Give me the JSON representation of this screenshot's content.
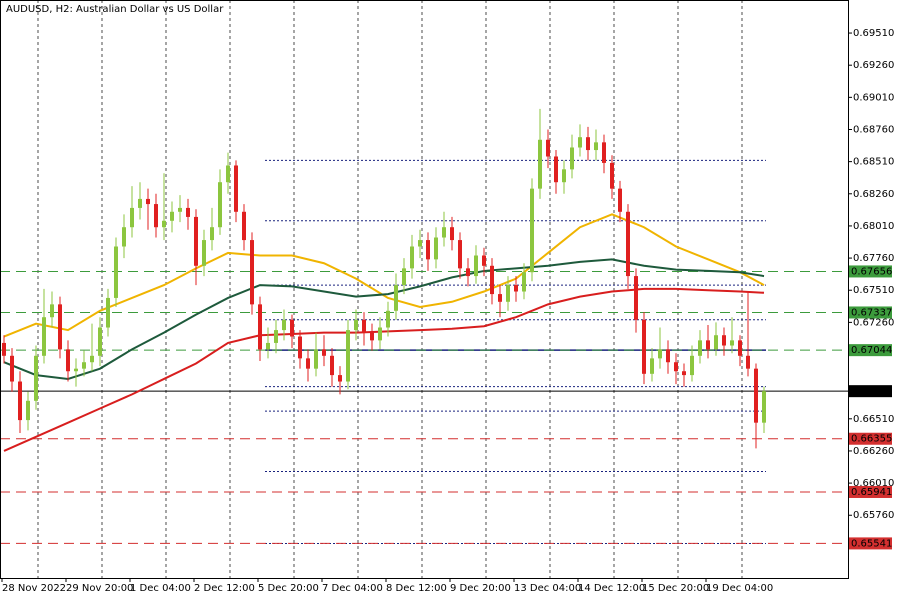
{
  "chart_data": {
    "type": "candlestick",
    "title": "AUDUSD, H2:  Australian Dollar vs US Dollar",
    "bull_color": "#8cc63f",
    "bear_color": "#e02020",
    "ylim": [
      0.65272,
      0.69767
    ],
    "yticks": [
      {
        "value": 0.6951,
        "label": "0.69510"
      },
      {
        "value": 0.6926,
        "label": "0.69260"
      },
      {
        "value": 0.6901,
        "label": "0.69010"
      },
      {
        "value": 0.6876,
        "label": "0.68760"
      },
      {
        "value": 0.6851,
        "label": "0.68510"
      },
      {
        "value": 0.6826,
        "label": "0.68260"
      },
      {
        "value": 0.6801,
        "label": "0.68010"
      },
      {
        "value": 0.6776,
        "label": "0.67760"
      },
      {
        "value": 0.6751,
        "label": "0.67510"
      },
      {
        "value": 0.6726,
        "label": "0.67260"
      },
      {
        "value": 0.6651,
        "label": "0.66510"
      },
      {
        "value": 0.6626,
        "label": "0.66260"
      },
      {
        "value": 0.6601,
        "label": "0.66010"
      },
      {
        "value": 0.6576,
        "label": "0.65760"
      }
    ],
    "xtick_labels": [
      "28 Nov 2022",
      "29 Nov 20:00",
      "1 Dec 04:00",
      "2 Dec 12:00",
      "5 Dec 20:00",
      "7 Dec 04:00",
      "8 Dec 12:00",
      "9 Dec 20:00",
      "13 Dec 04:00",
      "14 Dec 12:00",
      "15 Dec 20:00",
      "19 Dec 04:00"
    ],
    "grid": true,
    "candles": [
      [
        0.671,
        0.6716,
        0.6694,
        0.67
      ],
      [
        0.67,
        0.6706,
        0.6672,
        0.668
      ],
      [
        0.668,
        0.6688,
        0.664,
        0.665
      ],
      [
        0.665,
        0.6672,
        0.6642,
        0.6665
      ],
      [
        0.6665,
        0.6708,
        0.6658,
        0.67
      ],
      [
        0.67,
        0.6752,
        0.6694,
        0.673
      ],
      [
        0.673,
        0.675,
        0.6722,
        0.674
      ],
      [
        0.674,
        0.6746,
        0.6698,
        0.6705
      ],
      [
        0.6705,
        0.6712,
        0.668,
        0.6688
      ],
      [
        0.6688,
        0.6698,
        0.6676,
        0.669
      ],
      [
        0.669,
        0.6704,
        0.6684,
        0.6695
      ],
      [
        0.6695,
        0.6725,
        0.6688,
        0.67
      ],
      [
        0.67,
        0.673,
        0.6692,
        0.6722
      ],
      [
        0.6722,
        0.6752,
        0.6715,
        0.6745
      ],
      [
        0.6745,
        0.6792,
        0.6738,
        0.6785
      ],
      [
        0.6785,
        0.681,
        0.6776,
        0.68
      ],
      [
        0.68,
        0.6832,
        0.6792,
        0.6815
      ],
      [
        0.6815,
        0.6835,
        0.6806,
        0.6822
      ],
      [
        0.6822,
        0.683,
        0.6798,
        0.6818
      ],
      [
        0.6818,
        0.6826,
        0.6792,
        0.68
      ],
      [
        0.68,
        0.6842,
        0.679,
        0.6805
      ],
      [
        0.6805,
        0.682,
        0.6796,
        0.6812
      ],
      [
        0.6812,
        0.6825,
        0.6804,
        0.6815
      ],
      [
        0.6815,
        0.6822,
        0.6798,
        0.6808
      ],
      [
        0.6808,
        0.6814,
        0.6755,
        0.677
      ],
      [
        0.677,
        0.6798,
        0.6762,
        0.679
      ],
      [
        0.679,
        0.6815,
        0.6782,
        0.68
      ],
      [
        0.68,
        0.6845,
        0.6794,
        0.6835
      ],
      [
        0.6835,
        0.6858,
        0.6826,
        0.6848
      ],
      [
        0.6848,
        0.6852,
        0.6804,
        0.6812
      ],
      [
        0.6812,
        0.6818,
        0.6782,
        0.679
      ],
      [
        0.679,
        0.6796,
        0.6732,
        0.674
      ],
      [
        0.674,
        0.6746,
        0.6696,
        0.6705
      ],
      [
        0.6705,
        0.6722,
        0.6698,
        0.671
      ],
      [
        0.671,
        0.6728,
        0.6702,
        0.672
      ],
      [
        0.672,
        0.6736,
        0.6712,
        0.6728
      ],
      [
        0.6728,
        0.6732,
        0.6706,
        0.6715
      ],
      [
        0.6715,
        0.672,
        0.669,
        0.6698
      ],
      [
        0.6698,
        0.6705,
        0.668,
        0.669
      ],
      [
        0.669,
        0.6718,
        0.6684,
        0.6705
      ],
      [
        0.6705,
        0.6716,
        0.6692,
        0.67
      ],
      [
        0.67,
        0.6706,
        0.6676,
        0.6685
      ],
      [
        0.6685,
        0.6692,
        0.667,
        0.668
      ],
      [
        0.668,
        0.6728,
        0.6674,
        0.672
      ],
      [
        0.672,
        0.6736,
        0.6712,
        0.6728
      ],
      [
        0.6728,
        0.6734,
        0.6708,
        0.6718
      ],
      [
        0.6718,
        0.6725,
        0.6704,
        0.6712
      ],
      [
        0.6712,
        0.673,
        0.6705,
        0.6722
      ],
      [
        0.6722,
        0.6742,
        0.6715,
        0.6735
      ],
      [
        0.6735,
        0.6764,
        0.6728,
        0.6755
      ],
      [
        0.6755,
        0.6776,
        0.6748,
        0.6768
      ],
      [
        0.6768,
        0.6794,
        0.676,
        0.6785
      ],
      [
        0.6785,
        0.6798,
        0.6776,
        0.679
      ],
      [
        0.679,
        0.6796,
        0.6766,
        0.6775
      ],
      [
        0.6775,
        0.68,
        0.6768,
        0.6792
      ],
      [
        0.6792,
        0.6812,
        0.6785,
        0.68
      ],
      [
        0.68,
        0.6808,
        0.6782,
        0.679
      ],
      [
        0.679,
        0.6796,
        0.676,
        0.6768
      ],
      [
        0.6768,
        0.6776,
        0.6754,
        0.6762
      ],
      [
        0.6762,
        0.6786,
        0.6756,
        0.6778
      ],
      [
        0.6778,
        0.6784,
        0.6762,
        0.677
      ],
      [
        0.677,
        0.6776,
        0.674,
        0.6748
      ],
      [
        0.6748,
        0.6755,
        0.673,
        0.6742
      ],
      [
        0.6742,
        0.6762,
        0.6735,
        0.6755
      ],
      [
        0.6755,
        0.6762,
        0.6742,
        0.675
      ],
      [
        0.675,
        0.6772,
        0.6744,
        0.6765
      ],
      [
        0.6765,
        0.6838,
        0.6758,
        0.683
      ],
      [
        0.683,
        0.6892,
        0.6822,
        0.6868
      ],
      [
        0.6868,
        0.6876,
        0.6846,
        0.6855
      ],
      [
        0.6855,
        0.686,
        0.6826,
        0.6835
      ],
      [
        0.6835,
        0.6852,
        0.6826,
        0.6845
      ],
      [
        0.6845,
        0.6872,
        0.6838,
        0.6862
      ],
      [
        0.6862,
        0.688,
        0.6855,
        0.687
      ],
      [
        0.687,
        0.6878,
        0.6852,
        0.686
      ],
      [
        0.686,
        0.6876,
        0.6852,
        0.6866
      ],
      [
        0.6866,
        0.6872,
        0.6842,
        0.685
      ],
      [
        0.685,
        0.6856,
        0.6822,
        0.683
      ],
      [
        0.683,
        0.6836,
        0.6804,
        0.6812
      ],
      [
        0.6812,
        0.6818,
        0.6752,
        0.6762
      ],
      [
        0.6762,
        0.6768,
        0.6718,
        0.6728
      ],
      [
        0.6728,
        0.6734,
        0.6678,
        0.6686
      ],
      [
        0.6686,
        0.6706,
        0.668,
        0.6698
      ],
      [
        0.6698,
        0.6722,
        0.669,
        0.6705
      ],
      [
        0.6705,
        0.6712,
        0.6686,
        0.6695
      ],
      [
        0.6695,
        0.6702,
        0.6678,
        0.6688
      ],
      [
        0.6688,
        0.6694,
        0.6676,
        0.6685
      ],
      [
        0.6685,
        0.6708,
        0.668,
        0.67
      ],
      [
        0.67,
        0.672,
        0.6694,
        0.6712
      ],
      [
        0.6712,
        0.6724,
        0.6698,
        0.6705
      ],
      [
        0.6705,
        0.6726,
        0.67,
        0.6716
      ],
      [
        0.6716,
        0.6722,
        0.67,
        0.6708
      ],
      [
        0.6708,
        0.673,
        0.6702,
        0.6712
      ],
      [
        0.6712,
        0.6716,
        0.6692,
        0.67
      ],
      [
        0.67,
        0.675,
        0.6684,
        0.669
      ],
      [
        0.669,
        0.6694,
        0.6628,
        0.6648
      ],
      [
        0.6648,
        0.6676,
        0.664,
        0.66725
      ]
    ],
    "series": [
      {
        "color": "#f0b400",
        "x": [
          0,
          4,
          8,
          12,
          16,
          20,
          24,
          28,
          32,
          36,
          40,
          44,
          48,
          52,
          56,
          60,
          64,
          68,
          72,
          76,
          80,
          84,
          88,
          92,
          95
        ],
        "values": [
          0.6715,
          0.6725,
          0.672,
          0.6735,
          0.6745,
          0.6755,
          0.6768,
          0.678,
          0.6778,
          0.6778,
          0.6772,
          0.676,
          0.6745,
          0.6738,
          0.6742,
          0.675,
          0.676,
          0.678,
          0.68,
          0.681,
          0.68,
          0.6785,
          0.6775,
          0.6765,
          0.6755
        ]
      },
      {
        "color": "#1e5a3c",
        "x": [
          0,
          4,
          8,
          12,
          16,
          20,
          24,
          28,
          32,
          36,
          40,
          44,
          48,
          52,
          56,
          60,
          64,
          68,
          72,
          76,
          80,
          84,
          88,
          92,
          95
        ],
        "values": [
          0.6695,
          0.6685,
          0.6682,
          0.669,
          0.6705,
          0.6718,
          0.6732,
          0.6745,
          0.6755,
          0.6754,
          0.675,
          0.6746,
          0.6748,
          0.6754,
          0.6761,
          0.6766,
          0.6768,
          0.677,
          0.6773,
          0.6775,
          0.677,
          0.6767,
          0.6766,
          0.6765,
          0.6762
        ]
      },
      {
        "color": "#d81e1e",
        "x": [
          0,
          4,
          8,
          12,
          16,
          20,
          24,
          28,
          32,
          36,
          40,
          44,
          48,
          52,
          56,
          60,
          64,
          68,
          72,
          76,
          80,
          84,
          88,
          92,
          95
        ],
        "values": [
          0.6626,
          0.6637,
          0.6648,
          0.6659,
          0.667,
          0.6682,
          0.6694,
          0.671,
          0.6716,
          0.6717,
          0.6718,
          0.6718,
          0.6719,
          0.672,
          0.6721,
          0.6723,
          0.673,
          0.674,
          0.6746,
          0.675,
          0.6752,
          0.6752,
          0.6751,
          0.675,
          0.6749
        ]
      }
    ],
    "fib_levels": [
      0.6852,
      0.6805,
      0.6755,
      0.6728,
      0.6676,
      0.6657,
      0.661,
      0.6554
    ],
    "fib_color": "#1a237e",
    "pivot_line": 0.67044,
    "support_levels": [
      0.66355,
      0.65941,
      0.65541
    ],
    "resistance_levels": [
      0.67656,
      0.67337,
      0.67044
    ],
    "support_color": "#d32f2f",
    "resistance_color": "#3c9b3c",
    "current_price": 0.66725
  }
}
